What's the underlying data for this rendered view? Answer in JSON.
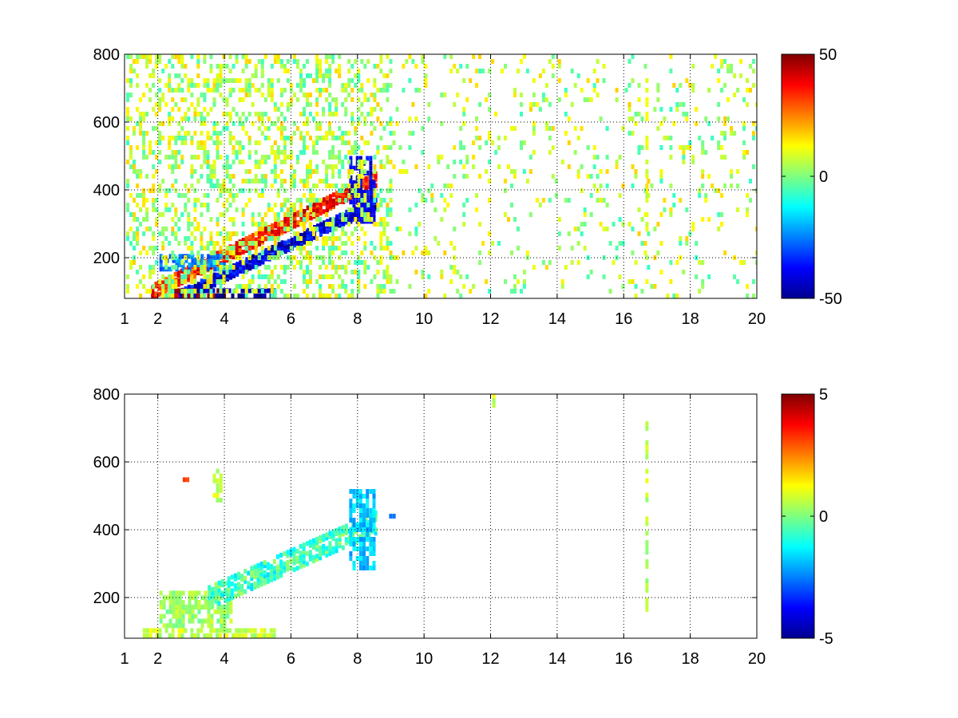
{
  "chart_data": [
    {
      "type": "heatmap",
      "x_ticks": [
        "1",
        "2",
        "4",
        "6",
        "8",
        "10",
        "12",
        "14",
        "16",
        "18",
        "20"
      ],
      "x_tick_values": [
        1,
        2,
        4,
        6,
        8,
        10,
        12,
        14,
        16,
        18,
        20
      ],
      "y_ticks": [
        "200",
        "400",
        "600",
        "800"
      ],
      "y_tick_values": [
        200,
        400,
        600,
        800
      ],
      "xlim": [
        1,
        20
      ],
      "ylim": [
        80,
        800
      ],
      "grid": true,
      "colormap": "jet",
      "colorbar": {
        "ticks": [
          "50",
          "0",
          "-50"
        ],
        "tick_values": [
          50,
          0,
          -50
        ],
        "clim": [
          -50,
          50
        ]
      },
      "features": [
        {
          "kind": "band",
          "x": [
            1.8,
            8.5
          ],
          "y": [
            100,
            430
          ],
          "value": 35,
          "width": 35
        },
        {
          "kind": "band",
          "x": [
            2.5,
            8.5
          ],
          "y": [
            80,
            360
          ],
          "value": -40,
          "width": 30
        },
        {
          "kind": "patch",
          "x": [
            2.3,
            4.0
          ],
          "y": [
            80,
            110
          ],
          "value": 45
        },
        {
          "kind": "patch",
          "x": [
            3.0,
            5.5
          ],
          "y": [
            80,
            110
          ],
          "value": -45
        },
        {
          "kind": "patch",
          "x": [
            2.0,
            4.0
          ],
          "y": [
            160,
            210
          ],
          "value": -25
        },
        {
          "kind": "patch",
          "x": [
            7.7,
            8.5
          ],
          "y": [
            300,
            500
          ],
          "value": -40
        },
        {
          "kind": "scatter",
          "x": [
            1,
            9
          ],
          "y": [
            80,
            800
          ],
          "value": 5,
          "density": 0.35
        },
        {
          "kind": "scatter",
          "x": [
            9,
            20
          ],
          "y": [
            80,
            800
          ],
          "value": 5,
          "density": 0.1
        },
        {
          "kind": "stripe",
          "x": [
            16.6,
            16.7
          ],
          "y": [
            80,
            800
          ],
          "value": 10
        }
      ]
    },
    {
      "type": "heatmap",
      "x_ticks": [
        "1",
        "2",
        "4",
        "6",
        "8",
        "10",
        "12",
        "14",
        "16",
        "18",
        "20"
      ],
      "x_tick_values": [
        1,
        2,
        4,
        6,
        8,
        10,
        12,
        14,
        16,
        18,
        20
      ],
      "y_ticks": [
        "200",
        "400",
        "600",
        "800"
      ],
      "y_tick_values": [
        200,
        400,
        600,
        800
      ],
      "xlim": [
        1,
        20
      ],
      "ylim": [
        80,
        800
      ],
      "grid": true,
      "colormap": "jet",
      "colorbar": {
        "ticks": [
          "5",
          "0",
          "-5"
        ],
        "tick_values": [
          5,
          0,
          -5
        ],
        "clim": [
          -5,
          5
        ]
      },
      "features": [
        {
          "kind": "patch",
          "x": [
            1.5,
            5.5
          ],
          "y": [
            80,
            110
          ],
          "value": 0.7
        },
        {
          "kind": "patch",
          "x": [
            2.0,
            4.2
          ],
          "y": [
            110,
            220
          ],
          "value": 0.3
        },
        {
          "kind": "band",
          "x": [
            3.5,
            8.5
          ],
          "y": [
            200,
            420
          ],
          "value": -0.6,
          "width": 60
        },
        {
          "kind": "patch",
          "x": [
            7.7,
            8.5
          ],
          "y": [
            280,
            520
          ],
          "value": -1.8
        },
        {
          "kind": "patch",
          "x": [
            3.6,
            3.9
          ],
          "y": [
            480,
            580
          ],
          "value": 0.6
        },
        {
          "kind": "point",
          "x": [
            2.7,
            2.9
          ],
          "y": [
            540,
            555
          ],
          "value": 3.5
        },
        {
          "kind": "point",
          "x": [
            8.9,
            9.1
          ],
          "y": [
            430,
            450
          ],
          "value": -2.5
        },
        {
          "kind": "point",
          "x": [
            12.0,
            12.1
          ],
          "y": [
            760,
            800
          ],
          "value": 0.8
        },
        {
          "kind": "stripe",
          "x": [
            16.6,
            16.7
          ],
          "y": [
            130,
            720
          ],
          "value": 0.5
        }
      ]
    }
  ]
}
